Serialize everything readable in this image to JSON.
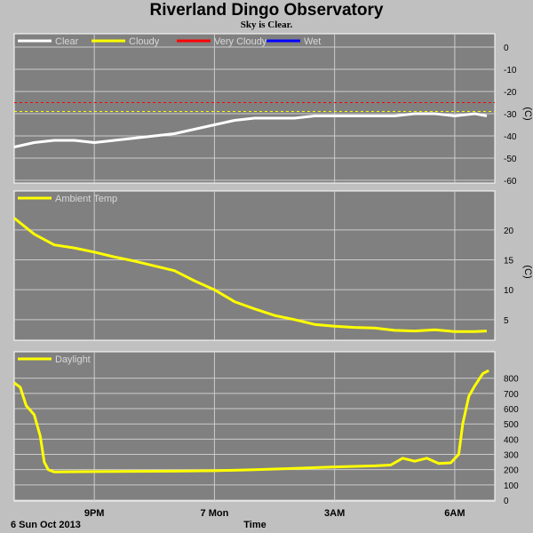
{
  "page": {
    "title": "Riverland Dingo Observatory",
    "subtitle": "Sky is Clear."
  },
  "chart_data": [
    {
      "type": "line",
      "name": "sky",
      "unit": "(C)",
      "ylim": [
        -60,
        0
      ],
      "yticks": [
        0,
        -10,
        -20,
        -30,
        -40,
        -50,
        -60
      ],
      "legend": [
        {
          "label": "Clear",
          "color": "#ffffff"
        },
        {
          "label": "Cloudy",
          "color": "#ffff00"
        },
        {
          "label": "Very Cloudy",
          "color": "#ff0000"
        },
        {
          "label": "Wet",
          "color": "#0000ff"
        }
      ],
      "thresholds": [
        {
          "name": "Cloudy",
          "value": -29,
          "color": "#ffff00"
        },
        {
          "name": "Very Cloudy",
          "value": -25,
          "color": "#ff0000"
        }
      ],
      "series": [
        {
          "name": "Clear",
          "color": "#ffffff",
          "x": [
            0,
            0.25,
            0.5,
            1,
            1.5,
            2,
            2.5,
            3,
            3.5,
            4,
            4.5,
            5,
            5.5,
            6,
            6.5,
            7,
            7.5,
            8,
            8.5,
            9,
            9.5,
            10,
            10.5,
            11,
            11.5,
            11.8
          ],
          "y": [
            -45,
            -44,
            -43,
            -42,
            -42,
            -43,
            -42,
            -41,
            -40,
            -39,
            -37,
            -35,
            -33,
            -32,
            -32,
            -32,
            -31,
            -31,
            -31,
            -31,
            -31,
            -30,
            -30,
            -31,
            -30,
            -31
          ]
        }
      ]
    },
    {
      "type": "line",
      "name": "ambient",
      "unit": "(C)",
      "ylim": [
        2,
        24
      ],
      "yticks": [
        5,
        10,
        15,
        20
      ],
      "legend": [
        {
          "label": "Ambient Temp",
          "color": "#ffff00"
        }
      ],
      "series": [
        {
          "name": "Ambient Temp",
          "color": "#ffff00",
          "x": [
            0,
            0.5,
            1,
            1.5,
            2,
            2.5,
            3,
            3.5,
            4,
            4.5,
            5,
            5.5,
            6,
            6.5,
            7,
            7.5,
            8,
            8.5,
            9,
            9.5,
            10,
            10.5,
            11,
            11.5,
            11.8
          ],
          "y": [
            22,
            19.3,
            17.5,
            17,
            16.3,
            15.5,
            14.8,
            14,
            13.2,
            11.5,
            10,
            8,
            6.8,
            5.7,
            5,
            4.2,
            3.9,
            3.7,
            3.6,
            3.2,
            3.1,
            3.3,
            3.0,
            3.0,
            3.1
          ]
        }
      ]
    },
    {
      "type": "line",
      "name": "daylight",
      "ylim": [
        0,
        880
      ],
      "yticks": [
        0,
        100,
        200,
        300,
        400,
        500,
        600,
        700,
        800
      ],
      "legend": [
        {
          "label": "Daylight",
          "color": "#ffff00"
        }
      ],
      "series": [
        {
          "name": "Daylight",
          "color": "#ffff00",
          "x": [
            0,
            0.15,
            0.3,
            0.5,
            0.65,
            0.75,
            0.85,
            1,
            2,
            3,
            4,
            5,
            6,
            7,
            8,
            9,
            9.4,
            9.7,
            10,
            10.3,
            10.6,
            10.9,
            11.1,
            11.2,
            11.35,
            11.5,
            11.7,
            11.85
          ],
          "y": [
            770,
            740,
            620,
            560,
            420,
            250,
            200,
            185,
            187,
            189,
            190,
            193,
            200,
            208,
            218,
            225,
            230,
            275,
            255,
            275,
            240,
            245,
            300,
            500,
            680,
            750,
            830,
            850
          ]
        }
      ]
    }
  ],
  "x_axis": {
    "label": "Time",
    "date_label": "6 Sun Oct 2013",
    "ticks": [
      {
        "value": 2,
        "label": "9PM"
      },
      {
        "value": 5,
        "label": "7 Mon"
      },
      {
        "value": 8,
        "label": "3AM"
      },
      {
        "value": 11,
        "label": "6AM"
      }
    ],
    "range": [
      0,
      12
    ]
  }
}
